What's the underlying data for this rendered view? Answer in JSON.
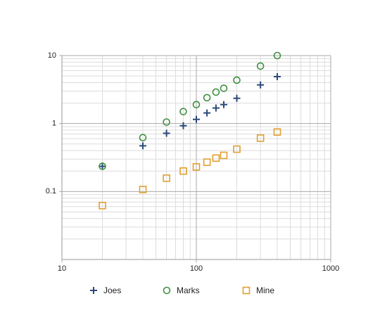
{
  "chart_data": {
    "type": "scatter",
    "log_x": true,
    "log_y": true,
    "grid": true,
    "minor_grid": true,
    "legend": "bottom",
    "x": [
      20,
      40,
      60,
      80,
      100,
      120,
      140,
      160,
      200,
      300,
      400
    ],
    "series": [
      {
        "name": "Joes",
        "color": "#2c4a7c",
        "marker": "plus",
        "values": [
          0.235,
          0.47,
          0.72,
          0.93,
          1.15,
          1.43,
          1.69,
          1.9,
          2.35,
          3.7,
          4.9
        ]
      },
      {
        "name": "Marks",
        "color": "#3f8f3f",
        "marker": "circle",
        "values": [
          0.235,
          0.62,
          1.05,
          1.5,
          1.9,
          2.4,
          2.9,
          3.3,
          4.35,
          7.0,
          10
        ]
      },
      {
        "name": "Mine",
        "color": "#e0a030",
        "marker": "square",
        "values": [
          0.062,
          0.107,
          0.157,
          0.2,
          0.23,
          0.27,
          0.31,
          0.34,
          0.42,
          0.61,
          0.75
        ]
      }
    ],
    "xlim": [
      10,
      1000
    ],
    "xticks": [
      10,
      100,
      1000
    ],
    "ylim": [
      0.01,
      10
    ],
    "yticks": [
      0.1,
      1,
      10
    ]
  }
}
